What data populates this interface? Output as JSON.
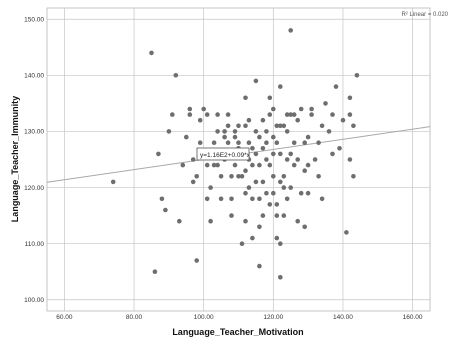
{
  "chart_data": {
    "type": "scatter",
    "title": "",
    "xlabel": "Language_Teacher_Motivation",
    "ylabel": "Language_Teacher_Immunity",
    "xlim": [
      55,
      165
    ],
    "ylim": [
      98,
      152
    ],
    "x_ticks": [
      "60.00",
      "80.00",
      "100.00",
      "120.00",
      "140.00",
      "160.00"
    ],
    "y_ticks": [
      "100.00",
      "110.00",
      "120.00",
      "130.00",
      "140.00",
      "150.00"
    ],
    "grid": true,
    "r2_label": "R² Linear = 0.020",
    "fit_equation_label": "y=1.16E2+0.09*x",
    "fit_line": {
      "intercept": 116.0,
      "slope": 0.09
    },
    "point_color": "#6e6e6e",
    "fit_color": "#a8a8a8",
    "points": [
      [
        74,
        121
      ],
      [
        85,
        144
      ],
      [
        86,
        105
      ],
      [
        87,
        126
      ],
      [
        88,
        118
      ],
      [
        89,
        116
      ],
      [
        90,
        130
      ],
      [
        91,
        133
      ],
      [
        92,
        140
      ],
      [
        93,
        114
      ],
      [
        94,
        124
      ],
      [
        95,
        129
      ],
      [
        96,
        133
      ],
      [
        96,
        134
      ],
      [
        97,
        125
      ],
      [
        97,
        121
      ],
      [
        98,
        107
      ],
      [
        98,
        122
      ],
      [
        99,
        132
      ],
      [
        99,
        128
      ],
      [
        100,
        126
      ],
      [
        100,
        134
      ],
      [
        101,
        124
      ],
      [
        101,
        118
      ],
      [
        101,
        133
      ],
      [
        102,
        114
      ],
      [
        102,
        120
      ],
      [
        103,
        128
      ],
      [
        103,
        124
      ],
      [
        104,
        130
      ],
      [
        104,
        124
      ],
      [
        104,
        133
      ],
      [
        105,
        126
      ],
      [
        105,
        122
      ],
      [
        105,
        118
      ],
      [
        106,
        129
      ],
      [
        106,
        130
      ],
      [
        106,
        125
      ],
      [
        107,
        131
      ],
      [
        107,
        128
      ],
      [
        107,
        133
      ],
      [
        108,
        118
      ],
      [
        108,
        126
      ],
      [
        108,
        122
      ],
      [
        108,
        115
      ],
      [
        109,
        124
      ],
      [
        109,
        130
      ],
      [
        109,
        129
      ],
      [
        110,
        131
      ],
      [
        110,
        128
      ],
      [
        110,
        127
      ],
      [
        110,
        122
      ],
      [
        111,
        126
      ],
      [
        111,
        122
      ],
      [
        111,
        110
      ],
      [
        112,
        136
      ],
      [
        112,
        123
      ],
      [
        112,
        119
      ],
      [
        112,
        114
      ],
      [
        112,
        131
      ],
      [
        113,
        125
      ],
      [
        113,
        120
      ],
      [
        113,
        128
      ],
      [
        113,
        132
      ],
      [
        114,
        111
      ],
      [
        114,
        127
      ],
      [
        114,
        124
      ],
      [
        114,
        118
      ],
      [
        115,
        126
      ],
      [
        115,
        139
      ],
      [
        115,
        121
      ],
      [
        115,
        130
      ],
      [
        116,
        118
      ],
      [
        116,
        129
      ],
      [
        116,
        106
      ],
      [
        116,
        113
      ],
      [
        116,
        124
      ],
      [
        117,
        127
      ],
      [
        117,
        121
      ],
      [
        117,
        132
      ],
      [
        117,
        115
      ],
      [
        118,
        128
      ],
      [
        118,
        125
      ],
      [
        118,
        119
      ],
      [
        118,
        130
      ],
      [
        119,
        136
      ],
      [
        119,
        124
      ],
      [
        119,
        117
      ],
      [
        119,
        133
      ],
      [
        120,
        122
      ],
      [
        120,
        126
      ],
      [
        120,
        129
      ],
      [
        120,
        134
      ],
      [
        120,
        119
      ],
      [
        121,
        111
      ],
      [
        121,
        128
      ],
      [
        121,
        117
      ],
      [
        121,
        131
      ],
      [
        121,
        115
      ],
      [
        122,
        126
      ],
      [
        122,
        138
      ],
      [
        122,
        121
      ],
      [
        122,
        131
      ],
      [
        122,
        110
      ],
      [
        122,
        104
      ],
      [
        123,
        122
      ],
      [
        123,
        131
      ],
      [
        123,
        120
      ],
      [
        123,
        115
      ],
      [
        124,
        130
      ],
      [
        124,
        125
      ],
      [
        124,
        133
      ],
      [
        124,
        118
      ],
      [
        125,
        126
      ],
      [
        125,
        120
      ],
      [
        125,
        148
      ],
      [
        125,
        133
      ],
      [
        126,
        124
      ],
      [
        126,
        128
      ],
      [
        126,
        133
      ],
      [
        127,
        132
      ],
      [
        127,
        125
      ],
      [
        127,
        114
      ],
      [
        128,
        119
      ],
      [
        128,
        134
      ],
      [
        129,
        128
      ],
      [
        129,
        123
      ],
      [
        129,
        113
      ],
      [
        130,
        129
      ],
      [
        130,
        124
      ],
      [
        130,
        119
      ],
      [
        131,
        134
      ],
      [
        131,
        133
      ],
      [
        132,
        125
      ],
      [
        133,
        128
      ],
      [
        133,
        122
      ],
      [
        134,
        118
      ],
      [
        134,
        131
      ],
      [
        135,
        135
      ],
      [
        136,
        130
      ],
      [
        137,
        126
      ],
      [
        137,
        133
      ],
      [
        138,
        138
      ],
      [
        139,
        127
      ],
      [
        140,
        132
      ],
      [
        141,
        112
      ],
      [
        142,
        125
      ],
      [
        142,
        136
      ],
      [
        142,
        133
      ],
      [
        143,
        122
      ],
      [
        143,
        131
      ],
      [
        144,
        140
      ]
    ]
  }
}
